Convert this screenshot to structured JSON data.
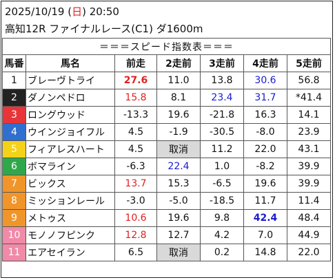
{
  "header": {
    "date_before": "2025/10/19 (",
    "day": "日",
    "date_after": ") 20:50",
    "race": "高知12R ファイナルレース(C1) ダ1600m"
  },
  "table": {
    "title": "＝＝＝スピード指数表＝＝＝",
    "columns": [
      "馬番",
      "馬名",
      "前走",
      "2走前",
      "3走前",
      "4走前",
      "5走前"
    ],
    "rows": [
      {
        "num": "1",
        "bg": "#ffffff",
        "fg": "#111111",
        "name": "ブレーヴトライ",
        "vals": [
          "27.6",
          "11.0",
          "13.8",
          "30.6",
          "56.8"
        ],
        "styles": [
          "red bold",
          "",
          "",
          "blue",
          ""
        ]
      },
      {
        "num": "2",
        "bg": "#222222",
        "fg": "#ffffff",
        "name": "ダノンペドロ",
        "vals": [
          "15.8",
          "8.1",
          "23.4",
          "31.7",
          "*41.4"
        ],
        "styles": [
          "red",
          "",
          "blue",
          "blue",
          ""
        ]
      },
      {
        "num": "3",
        "bg": "#e8353a",
        "fg": "#ffffff",
        "name": "ロングウッド",
        "vals": [
          "-13.3",
          "19.6",
          "-21.8",
          "16.3",
          "14.1"
        ],
        "styles": [
          "",
          "",
          "",
          "",
          ""
        ]
      },
      {
        "num": "4",
        "bg": "#2f6fd0",
        "fg": "#ffffff",
        "name": "ウインジョイフル",
        "vals": [
          "4.5",
          "-1.9",
          "-30.5",
          "-8.0",
          "23.9"
        ],
        "styles": [
          "",
          "",
          "",
          "",
          ""
        ]
      },
      {
        "num": "5",
        "bg": "#f4d21a",
        "fg": "#ffffff",
        "name": "フィアレスハート",
        "vals": [
          "4.5",
          "取消",
          "11.2",
          "22.0",
          "43.1"
        ],
        "styles": [
          "",
          "muted",
          "",
          "",
          ""
        ]
      },
      {
        "num": "6",
        "bg": "#2fa84a",
        "fg": "#ffffff",
        "name": "ボマライン",
        "vals": [
          "-6.3",
          "22.4",
          "1.0",
          "-8.2",
          "39.9"
        ],
        "styles": [
          "",
          "blue",
          "",
          "",
          ""
        ]
      },
      {
        "num": "7",
        "bg": "#f0952a",
        "fg": "#ffffff",
        "name": "ビックス",
        "vals": [
          "13.7",
          "15.3",
          "-6.5",
          "19.6",
          "39.9"
        ],
        "styles": [
          "red",
          "",
          "",
          "",
          ""
        ]
      },
      {
        "num": "8",
        "bg": "#f0952a",
        "fg": "#ffffff",
        "name": "ミッションレール",
        "vals": [
          "-3.0",
          "-5.0",
          "-18.5",
          "11.7",
          "11.4"
        ],
        "styles": [
          "",
          "",
          "",
          "",
          ""
        ]
      },
      {
        "num": "9",
        "bg": "#f0952a",
        "fg": "#ffffff",
        "name": "メトゥス",
        "vals": [
          "10.6",
          "19.6",
          "9.8",
          "42.4",
          "48.4"
        ],
        "styles": [
          "red",
          "",
          "",
          "blue bold",
          ""
        ]
      },
      {
        "num": "10",
        "bg": "#f08aa8",
        "fg": "#ffffff",
        "name": "モノノフピンク",
        "vals": [
          "12.8",
          "12.7",
          "4.2",
          "7.0",
          "44.9"
        ],
        "styles": [
          "red",
          "",
          "",
          "",
          ""
        ]
      },
      {
        "num": "11",
        "bg": "#f08aa8",
        "fg": "#ffffff",
        "name": "エアセイラン",
        "vals": [
          "6.5",
          "取消",
          "0.2",
          "14.8",
          "22.0"
        ],
        "styles": [
          "",
          "muted",
          "",
          "",
          ""
        ]
      }
    ]
  }
}
